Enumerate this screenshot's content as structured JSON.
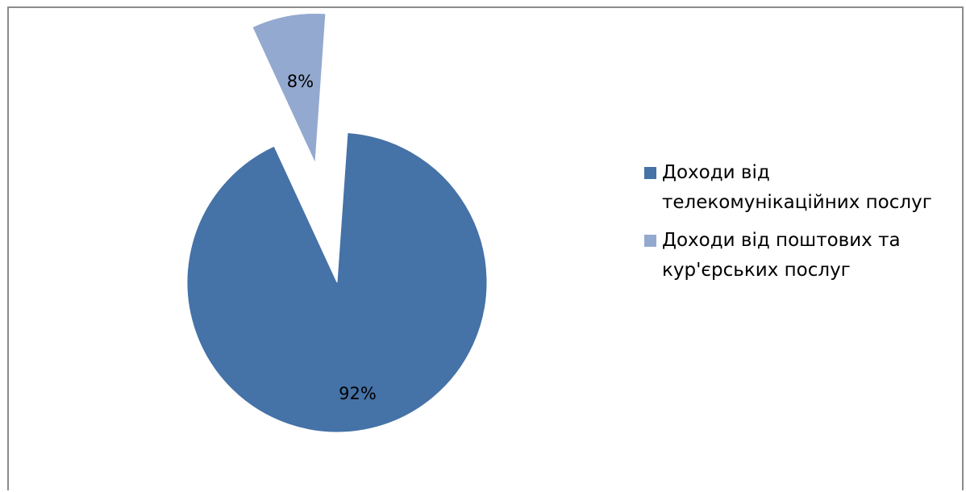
{
  "chart_data": {
    "type": "pie",
    "title": "",
    "labels": [
      "Доходи від телекомунікаційних послуг",
      "Доходи від поштових та кур'єрських послуг"
    ],
    "values": [
      92,
      8
    ],
    "data_labels": [
      "92%",
      "8%"
    ],
    "colors": [
      "#4572a7",
      "#93a9cf"
    ],
    "exploded": [
      false,
      true
    ],
    "legend_position": "right"
  }
}
